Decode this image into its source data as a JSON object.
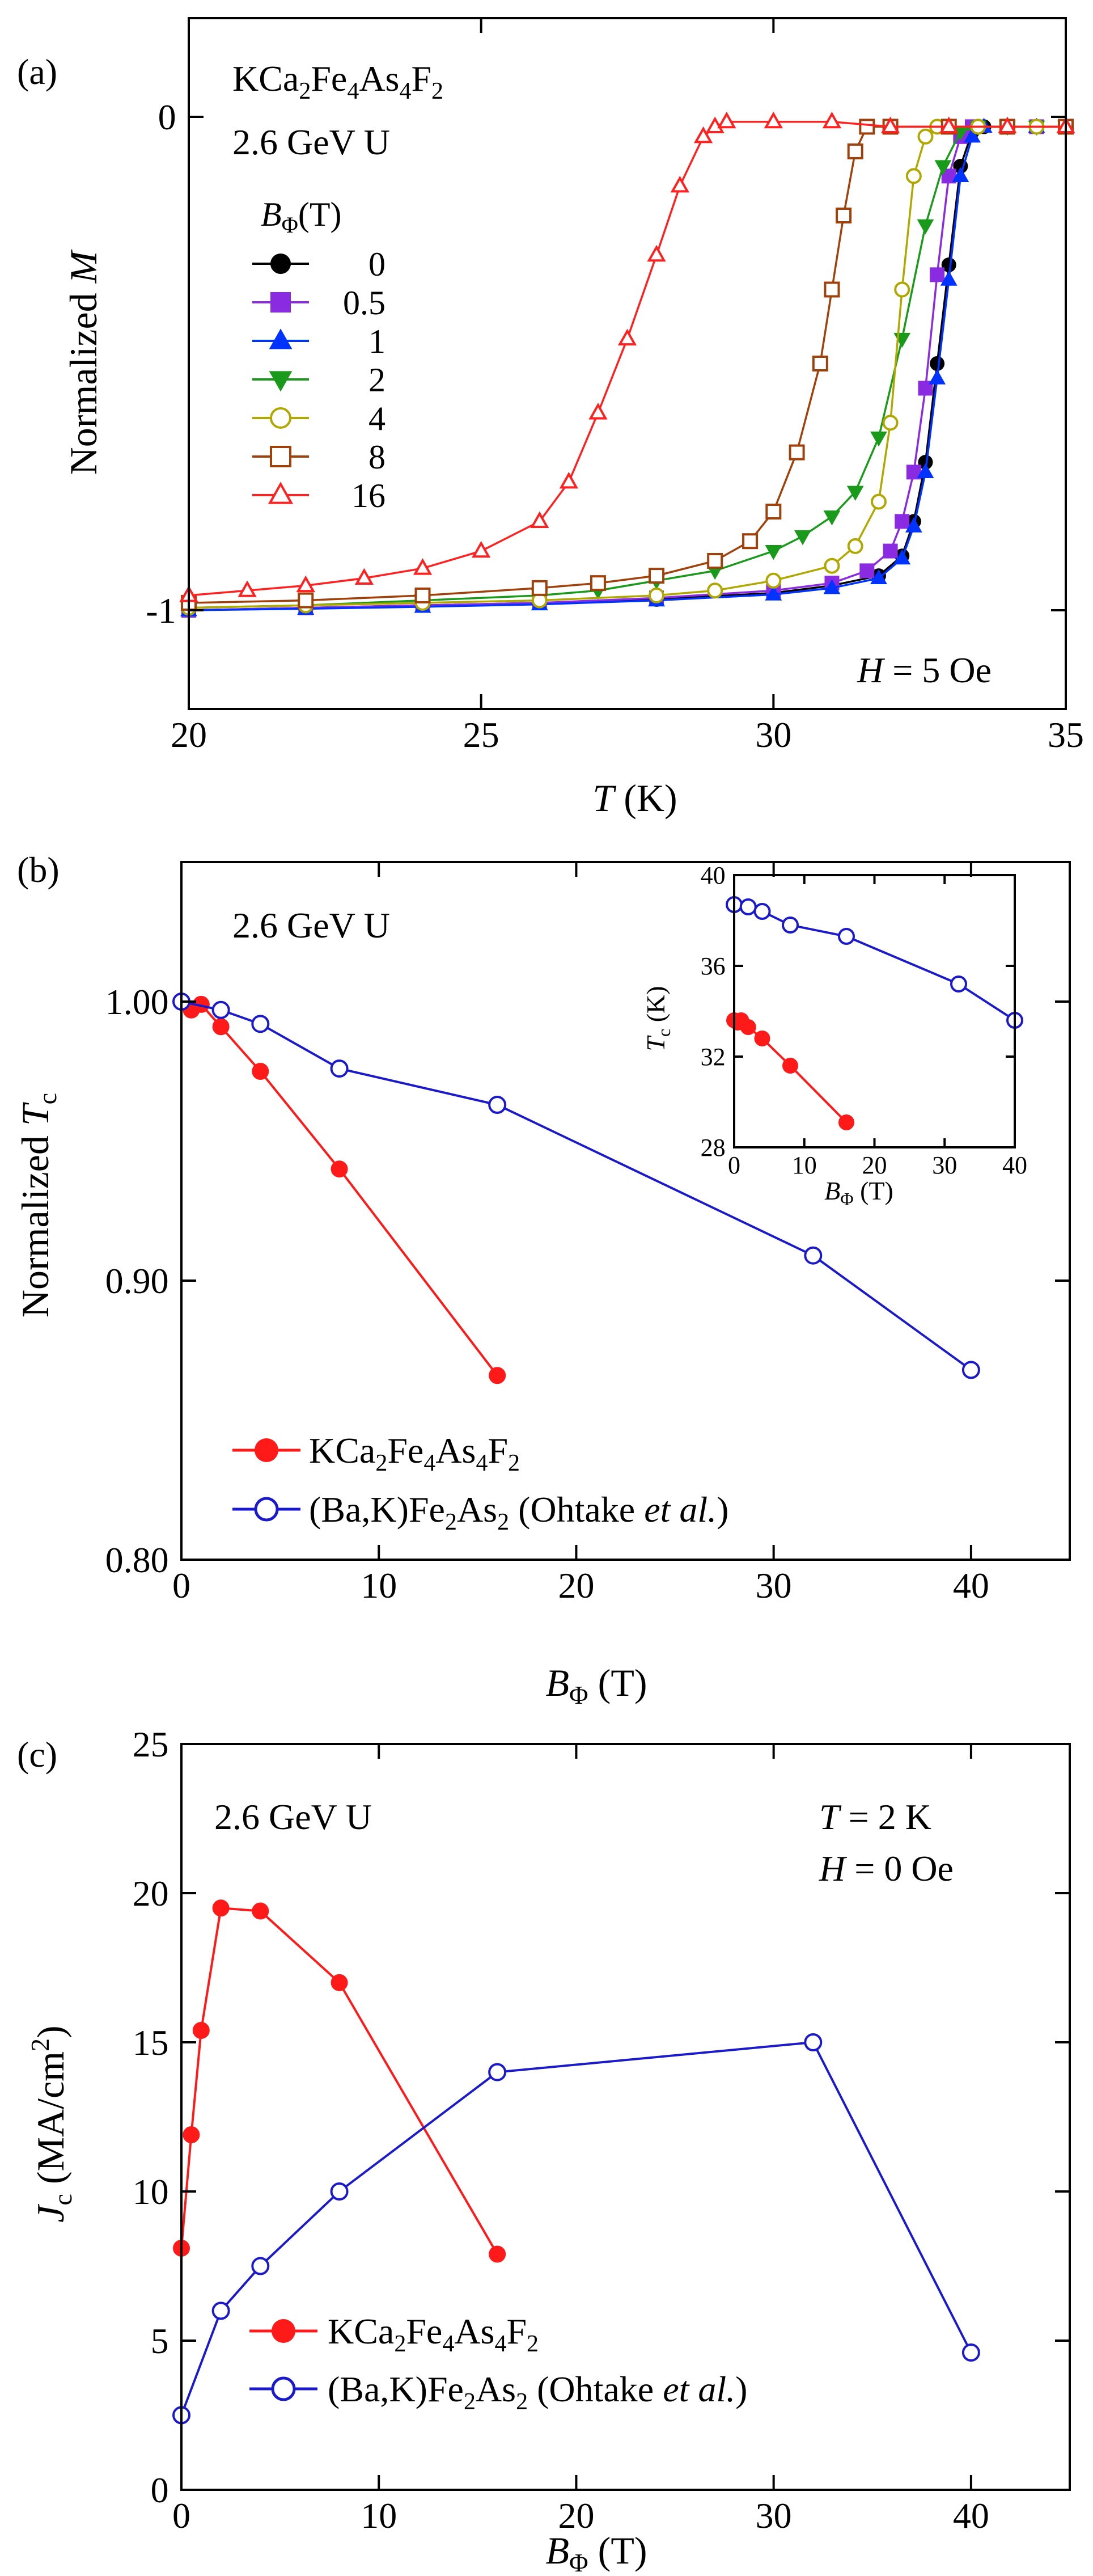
{
  "chart_data": [
    {
      "type": "line",
      "panel_label": "(a)",
      "annotations": {
        "compound_main": "KCa",
        "compound_sub1": "2",
        "compound_mid1": "Fe",
        "compound_sub2": "4",
        "compound_mid2": "As",
        "compound_sub3": "4",
        "compound_mid3": "F",
        "compound_sub4": "2",
        "irradiation": "2.6 GeV U",
        "field_var": "H",
        "field_value": " = 5 Oe"
      },
      "legend_title": {
        "main": "B",
        "sub": "Φ",
        "unit": "(T)"
      },
      "xlabel": {
        "var": "T",
        "unit": " (K)"
      },
      "ylabel": {
        "pre": "Normalized ",
        "var": "M"
      },
      "xlim": [
        20,
        35
      ],
      "ylim": [
        -1.2,
        0.2
      ],
      "x_ticks": [
        20,
        25,
        30,
        35
      ],
      "x_tick_labels": [
        "20",
        "25",
        "30",
        "35"
      ],
      "y_ticks": [
        0,
        -1
      ],
      "y_tick_labels": [
        "0",
        "-1"
      ],
      "series": [
        {
          "name": "0",
          "color": "#000000",
          "marker": "circle-filled",
          "x": [
            20,
            22,
            24,
            26,
            28,
            30,
            31,
            31.8,
            32.2,
            32.4,
            32.6,
            32.8,
            33.0,
            33.2,
            33.4,
            33.6,
            34,
            34.5,
            35
          ],
          "y": [
            -1.0,
            -0.995,
            -0.99,
            -0.985,
            -0.978,
            -0.965,
            -0.95,
            -0.93,
            -0.89,
            -0.82,
            -0.7,
            -0.5,
            -0.3,
            -0.1,
            -0.03,
            -0.02,
            -0.02,
            -0.02,
            -0.02
          ]
        },
        {
          "name": "0.5",
          "color": "#8a2be2",
          "marker": "square-filled",
          "x": [
            20,
            22,
            24,
            26,
            28,
            30,
            31,
            31.6,
            32.0,
            32.2,
            32.4,
            32.6,
            32.8,
            33.0,
            33.2,
            33.4,
            34,
            34.5,
            35
          ],
          "y": [
            -1.0,
            -0.995,
            -0.99,
            -0.985,
            -0.975,
            -0.96,
            -0.945,
            -0.92,
            -0.88,
            -0.82,
            -0.72,
            -0.55,
            -0.32,
            -0.12,
            -0.04,
            -0.02,
            -0.02,
            -0.02,
            -0.02
          ]
        },
        {
          "name": "1",
          "color": "#0033ff",
          "marker": "triangle-up-filled",
          "x": [
            20,
            22,
            24,
            26,
            28,
            30,
            31,
            31.8,
            32.2,
            32.4,
            32.6,
            32.8,
            33.0,
            33.2,
            33.4,
            33.6,
            34,
            34.5,
            35
          ],
          "y": [
            -1.0,
            -0.997,
            -0.993,
            -0.988,
            -0.98,
            -0.968,
            -0.955,
            -0.935,
            -0.895,
            -0.83,
            -0.72,
            -0.53,
            -0.33,
            -0.12,
            -0.04,
            -0.02,
            -0.02,
            -0.02,
            -0.02
          ]
        },
        {
          "name": "2",
          "color": "#1a9a1a",
          "marker": "triangle-down-filled",
          "x": [
            20,
            22,
            24,
            26,
            27,
            28,
            29,
            30,
            30.5,
            31,
            31.4,
            31.8,
            32.2,
            32.6,
            32.9,
            33.2,
            33.5,
            34,
            34.5,
            35
          ],
          "y": [
            -0.995,
            -0.99,
            -0.98,
            -0.97,
            -0.96,
            -0.94,
            -0.92,
            -0.88,
            -0.85,
            -0.81,
            -0.76,
            -0.65,
            -0.45,
            -0.22,
            -0.1,
            -0.03,
            -0.02,
            -0.02,
            -0.02,
            -0.02
          ]
        },
        {
          "name": "4",
          "color": "#b0a800",
          "marker": "circle-open",
          "x": [
            20,
            22,
            24,
            26,
            28,
            29,
            30,
            31,
            31.4,
            31.8,
            32.0,
            32.2,
            32.4,
            32.6,
            32.8,
            33.0,
            33.5,
            34,
            34.5,
            35
          ],
          "y": [
            -0.995,
            -0.99,
            -0.985,
            -0.98,
            -0.97,
            -0.96,
            -0.94,
            -0.91,
            -0.87,
            -0.78,
            -0.62,
            -0.35,
            -0.12,
            -0.04,
            -0.02,
            -0.02,
            -0.02,
            -0.02,
            -0.02,
            -0.02
          ]
        },
        {
          "name": "8",
          "color": "#a0400a",
          "marker": "square-open",
          "x": [
            20,
            22,
            24,
            26,
            27,
            28,
            29,
            29.6,
            30,
            30.4,
            30.8,
            31.0,
            31.2,
            31.4,
            31.6,
            32,
            33,
            34,
            35
          ],
          "y": [
            -0.985,
            -0.98,
            -0.97,
            -0.955,
            -0.945,
            -0.93,
            -0.9,
            -0.86,
            -0.8,
            -0.68,
            -0.5,
            -0.35,
            -0.2,
            -0.07,
            -0.02,
            -0.02,
            -0.02,
            -0.02,
            -0.02
          ]
        },
        {
          "name": "16",
          "color": "#ff2020",
          "marker": "triangle-up-open",
          "x": [
            20,
            21,
            22,
            23,
            24,
            25,
            26,
            26.5,
            27,
            27.5,
            28,
            28.4,
            28.8,
            29.0,
            29.2,
            30,
            31,
            32,
            33,
            34,
            35
          ],
          "y": [
            -0.97,
            -0.96,
            -0.95,
            -0.935,
            -0.915,
            -0.88,
            -0.82,
            -0.74,
            -0.6,
            -0.45,
            -0.28,
            -0.14,
            -0.04,
            -0.02,
            -0.01,
            -0.01,
            -0.01,
            -0.02,
            -0.02,
            -0.02,
            -0.02
          ]
        }
      ]
    },
    {
      "type": "line",
      "panel_label": "(b)",
      "annotations": {
        "irradiation": "2.6 GeV U"
      },
      "xlabel": {
        "main": "B",
        "sub": "Φ",
        "unit": " (T)"
      },
      "ylabel": {
        "pre": "Normalized ",
        "var": "T",
        "sub": "c"
      },
      "xlim": [
        0,
        45
      ],
      "ylim": [
        0.8,
        1.05
      ],
      "x_ticks": [
        0,
        10,
        20,
        30,
        40
      ],
      "x_tick_labels": [
        "0",
        "10",
        "20",
        "30",
        "40"
      ],
      "y_ticks": [
        0.8,
        0.9,
        1.0
      ],
      "y_tick_labels": [
        "0.80",
        "0.90",
        "1.00"
      ],
      "legend": [
        {
          "pre": "KCa",
          "s1": "2",
          "m1": "Fe",
          "s2": "4",
          "m2": "As",
          "s3": "4",
          "m3": "F",
          "s4": "2",
          "post": "",
          "italic": "",
          "end": ""
        },
        {
          "pre": "(Ba,K)Fe",
          "s1": "2",
          "m1": "As",
          "s2": "2",
          "m2": " (Ohtake ",
          "s3": "",
          "m3": "",
          "s4": "",
          "post": "",
          "italic": "et al.",
          "end": ")"
        }
      ],
      "series": [
        {
          "name": "KCa2Fe4As4F2",
          "color": "#ff1a1a",
          "marker": "circle-filled",
          "x": [
            0,
            0.5,
            1,
            2,
            4,
            8,
            16
          ],
          "y": [
            1.0,
            0.997,
            0.999,
            0.991,
            0.975,
            0.94,
            0.866
          ]
        },
        {
          "name": "(Ba,K)Fe2As2 (Ohtake et al.)",
          "color": "#1a1acc",
          "marker": "circle-open",
          "x": [
            0,
            2,
            4,
            8,
            16,
            32,
            40
          ],
          "y": [
            1.0,
            0.997,
            0.992,
            0.976,
            0.963,
            0.909,
            0.868
          ]
        }
      ],
      "inset": {
        "xlabel": {
          "main": "B",
          "sub": "Φ",
          "unit": " (T)"
        },
        "ylabel": {
          "var": "T",
          "sub": "c",
          "unit": " (K)"
        },
        "xlim": [
          0,
          40
        ],
        "ylim": [
          28,
          40
        ],
        "x_ticks": [
          0,
          10,
          20,
          30,
          40
        ],
        "x_tick_labels": [
          "0",
          "10",
          "20",
          "30",
          "40"
        ],
        "y_ticks": [
          28,
          32,
          36,
          40
        ],
        "y_tick_labels": [
          "28",
          "32",
          "36",
          "40"
        ],
        "series": [
          {
            "name": "KCa2Fe4As4F2",
            "color": "#ff1a1a",
            "marker": "circle-filled",
            "x": [
              0,
              0.5,
              1,
              2,
              4,
              8,
              16
            ],
            "y": [
              33.6,
              33.5,
              33.6,
              33.3,
              32.8,
              31.6,
              29.1
            ]
          },
          {
            "name": "(Ba,K)Fe2As2",
            "color": "#1a1acc",
            "marker": "circle-open",
            "x": [
              0,
              2,
              4,
              8,
              16,
              32,
              40
            ],
            "y": [
              38.7,
              38.6,
              38.4,
              37.8,
              37.3,
              35.2,
              33.6
            ]
          }
        ]
      }
    },
    {
      "type": "line",
      "panel_label": "(c)",
      "annotations": {
        "irradiation": "2.6 GeV U",
        "temp_var": "T",
        "temp_value": " = 2 K",
        "field_var": "H",
        "field_value": " = 0 Oe"
      },
      "xlabel": {
        "main": "B",
        "sub": "Φ",
        "unit": " (T)"
      },
      "ylabel": {
        "var": "J",
        "sub": "c",
        "unit": " (MA/cm",
        "sup": "2",
        "end": ")"
      },
      "xlim": [
        0,
        45
      ],
      "ylim": [
        0,
        25
      ],
      "x_ticks": [
        0,
        10,
        20,
        30,
        40
      ],
      "x_tick_labels": [
        "0",
        "10",
        "20",
        "30",
        "40"
      ],
      "y_ticks": [
        0,
        5,
        10,
        15,
        20,
        25
      ],
      "y_tick_labels": [
        "0",
        "5",
        "10",
        "15",
        "20",
        "25"
      ],
      "legend": [
        {
          "pre": "KCa",
          "s1": "2",
          "m1": "Fe",
          "s2": "4",
          "m2": "As",
          "s3": "4",
          "m3": "F",
          "s4": "2",
          "post": "",
          "italic": "",
          "end": ""
        },
        {
          "pre": "(Ba,K)Fe",
          "s1": "2",
          "m1": "As",
          "s2": "2",
          "m2": " (Ohtake ",
          "s3": "",
          "m3": "",
          "s4": "",
          "post": "",
          "italic": "et al.",
          "end": ")"
        }
      ],
      "series": [
        {
          "name": "KCa2Fe4As4F2",
          "color": "#ff1a1a",
          "marker": "circle-filled",
          "x": [
            0,
            0.5,
            1,
            2,
            4,
            8,
            16
          ],
          "y": [
            8.1,
            11.9,
            15.4,
            19.5,
            19.4,
            17.0,
            7.9
          ]
        },
        {
          "name": "(Ba,K)Fe2As2 (Ohtake et al.)",
          "color": "#1a1acc",
          "marker": "circle-open",
          "x": [
            0,
            2,
            4,
            8,
            16,
            32,
            40
          ],
          "y": [
            2.5,
            6.0,
            7.5,
            10.0,
            14.0,
            15.0,
            4.6
          ]
        }
      ]
    }
  ]
}
